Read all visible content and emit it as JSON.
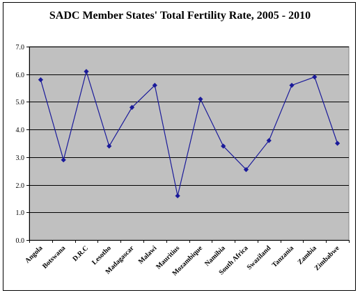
{
  "chart_data": {
    "type": "line",
    "title": "SADC Member States' Total Fertility Rate, 2005 - 2010",
    "xlabel": "",
    "ylabel": "",
    "categories": [
      "Angola",
      "Botswana",
      "D.R.C",
      "Lesotho",
      "Madagascar",
      "Malawi",
      "Mauritius",
      "Mozambique",
      "Namibia",
      "South Africa",
      "Swaziland",
      "Tanzania",
      "Zambia",
      "Zimbabwe"
    ],
    "series": [
      {
        "values": [
          5.8,
          2.9,
          6.1,
          3.4,
          4.8,
          5.6,
          1.6,
          5.1,
          3.4,
          2.55,
          3.6,
          5.6,
          5.9,
          3.5
        ]
      }
    ],
    "ylim": [
      0,
      7
    ],
    "yticks": [
      "0.0",
      "1.0",
      "2.0",
      "3.0",
      "4.0",
      "5.0",
      "6.0",
      "7.0"
    ],
    "grid": true,
    "legend": "none",
    "colors": {
      "plot_background": "#c0c0c0",
      "line": "#1a1a9a",
      "marker": "#1a1a9a",
      "gridline": "#000000"
    }
  }
}
